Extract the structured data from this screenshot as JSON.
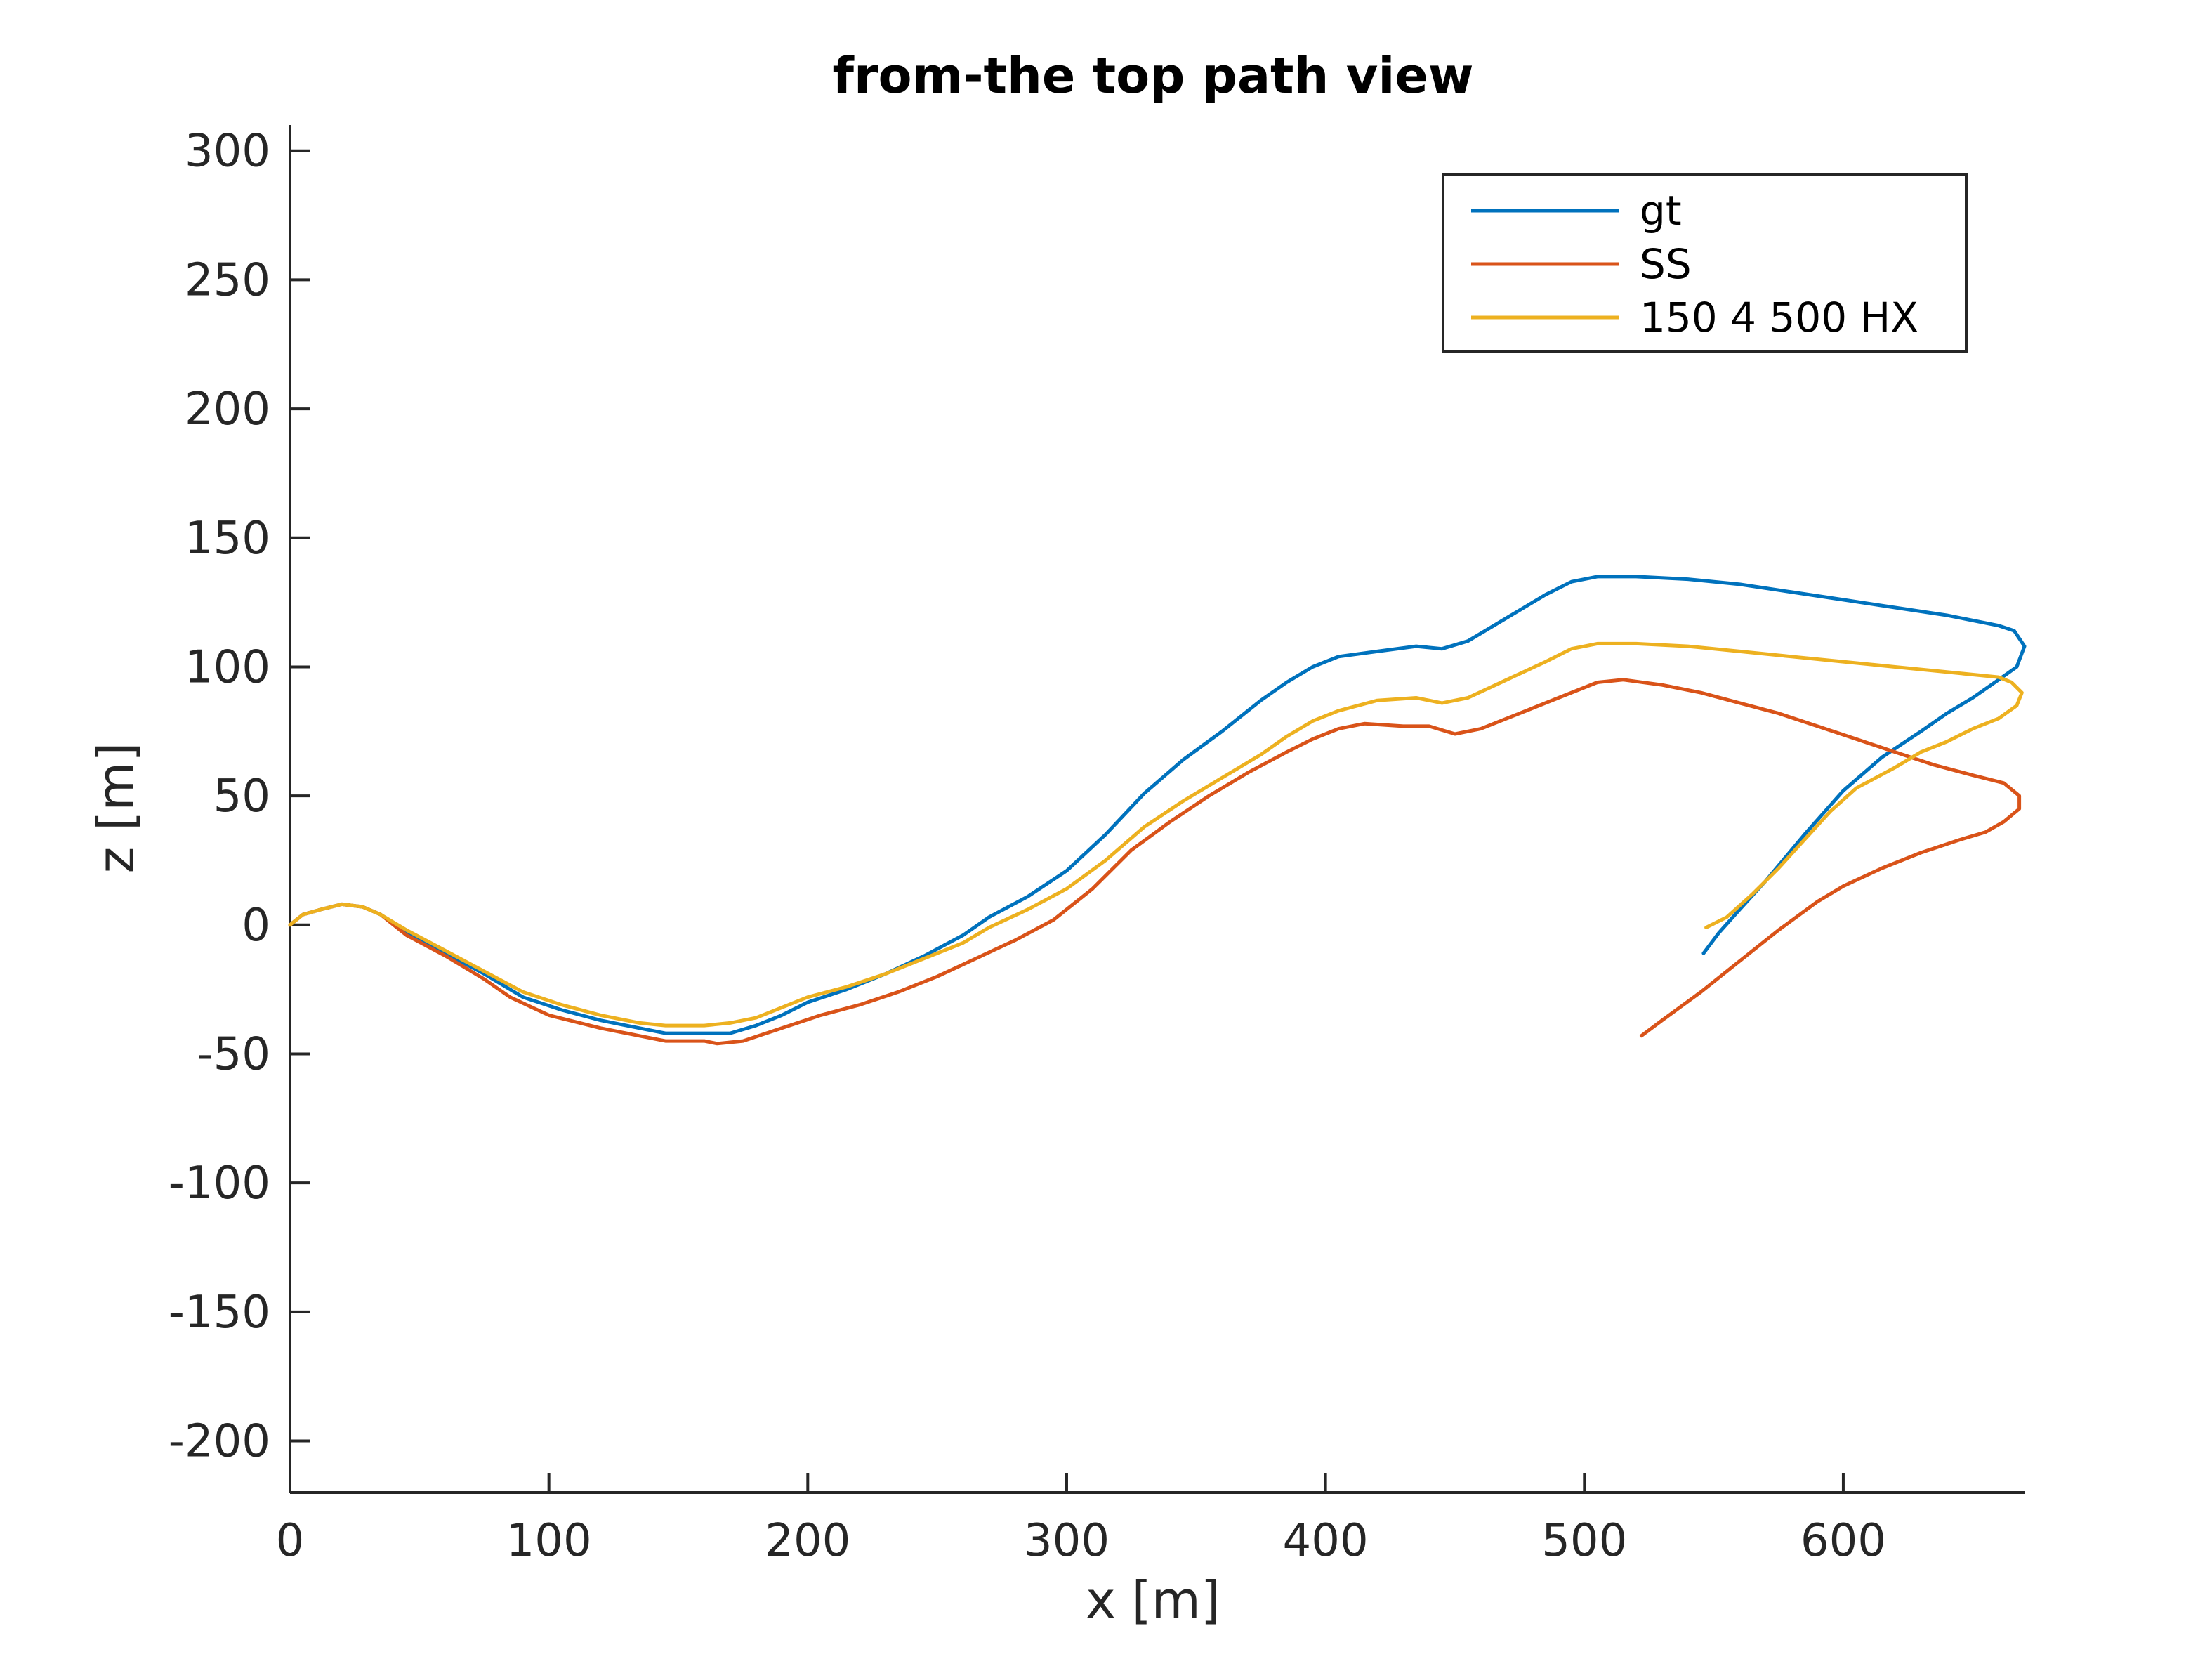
{
  "chart_data": {
    "type": "line",
    "title": "from-the top path view",
    "xlabel": "x [m]",
    "ylabel": "z [m]",
    "xlim": [
      0,
      670
    ],
    "ylim": [
      -220,
      310
    ],
    "xticks": [
      0,
      100,
      200,
      300,
      400,
      500,
      600
    ],
    "yticks": [
      300,
      250,
      200,
      150,
      100,
      50,
      0,
      -50,
      -100,
      -150,
      -200
    ],
    "grid": false,
    "legend_position": "top-right",
    "series": [
      {
        "name": "gt",
        "color": "#0072BD",
        "points": [
          [
            0,
            0
          ],
          [
            5,
            4
          ],
          [
            12,
            6
          ],
          [
            20,
            8
          ],
          [
            28,
            7
          ],
          [
            35,
            4
          ],
          [
            45,
            -3
          ],
          [
            60,
            -11
          ],
          [
            75,
            -19
          ],
          [
            90,
            -28
          ],
          [
            105,
            -33
          ],
          [
            120,
            -37
          ],
          [
            135,
            -40
          ],
          [
            145,
            -42
          ],
          [
            160,
            -42
          ],
          [
            170,
            -42
          ],
          [
            180,
            -39
          ],
          [
            190,
            -35
          ],
          [
            200,
            -30
          ],
          [
            215,
            -25
          ],
          [
            230,
            -19
          ],
          [
            245,
            -12
          ],
          [
            260,
            -4
          ],
          [
            270,
            3
          ],
          [
            285,
            11
          ],
          [
            300,
            21
          ],
          [
            315,
            35
          ],
          [
            330,
            51
          ],
          [
            345,
            64
          ],
          [
            360,
            75
          ],
          [
            375,
            87
          ],
          [
            385,
            94
          ],
          [
            395,
            100
          ],
          [
            405,
            104
          ],
          [
            420,
            106
          ],
          [
            435,
            108
          ],
          [
            445,
            107
          ],
          [
            455,
            110
          ],
          [
            470,
            119
          ],
          [
            485,
            128
          ],
          [
            495,
            133
          ],
          [
            505,
            135
          ],
          [
            520,
            135
          ],
          [
            540,
            134
          ],
          [
            560,
            132
          ],
          [
            580,
            129
          ],
          [
            600,
            126
          ],
          [
            620,
            123
          ],
          [
            640,
            120
          ],
          [
            660,
            116
          ],
          [
            666,
            114
          ],
          [
            670,
            108
          ],
          [
            667,
            100
          ],
          [
            660,
            95
          ],
          [
            650,
            88
          ],
          [
            640,
            82
          ],
          [
            630,
            75
          ],
          [
            615,
            65
          ],
          [
            600,
            52
          ],
          [
            585,
            35
          ],
          [
            570,
            17
          ],
          [
            560,
            6
          ],
          [
            552,
            -3
          ],
          [
            546,
            -11
          ]
        ]
      },
      {
        "name": "SS",
        "color": "#D95319",
        "points": [
          [
            0,
            0
          ],
          [
            5,
            4
          ],
          [
            12,
            6
          ],
          [
            20,
            8
          ],
          [
            28,
            7
          ],
          [
            35,
            4
          ],
          [
            45,
            -4
          ],
          [
            60,
            -12
          ],
          [
            75,
            -21
          ],
          [
            85,
            -28
          ],
          [
            100,
            -35
          ],
          [
            120,
            -40
          ],
          [
            135,
            -43
          ],
          [
            145,
            -45
          ],
          [
            160,
            -45
          ],
          [
            165,
            -46
          ],
          [
            175,
            -45
          ],
          [
            190,
            -40
          ],
          [
            205,
            -35
          ],
          [
            220,
            -31
          ],
          [
            235,
            -26
          ],
          [
            250,
            -20
          ],
          [
            265,
            -13
          ],
          [
            280,
            -6
          ],
          [
            295,
            2
          ],
          [
            310,
            14
          ],
          [
            325,
            29
          ],
          [
            340,
            40
          ],
          [
            355,
            50
          ],
          [
            370,
            59
          ],
          [
            385,
            67
          ],
          [
            395,
            72
          ],
          [
            405,
            76
          ],
          [
            415,
            78
          ],
          [
            430,
            77
          ],
          [
            440,
            77
          ],
          [
            450,
            74
          ],
          [
            460,
            76
          ],
          [
            475,
            82
          ],
          [
            490,
            88
          ],
          [
            505,
            94
          ],
          [
            515,
            95
          ],
          [
            530,
            93
          ],
          [
            545,
            90
          ],
          [
            560,
            86
          ],
          [
            575,
            82
          ],
          [
            590,
            77
          ],
          [
            605,
            72
          ],
          [
            620,
            67
          ],
          [
            635,
            62
          ],
          [
            650,
            58
          ],
          [
            662,
            55
          ],
          [
            668,
            50
          ],
          [
            668,
            45
          ],
          [
            662,
            40
          ],
          [
            655,
            36
          ],
          [
            645,
            33
          ],
          [
            630,
            28
          ],
          [
            615,
            22
          ],
          [
            600,
            15
          ],
          [
            590,
            9
          ],
          [
            575,
            -2
          ],
          [
            560,
            -14
          ],
          [
            545,
            -26
          ],
          [
            530,
            -37
          ],
          [
            522,
            -43
          ]
        ]
      },
      {
        "name": "150 4 500 HX",
        "color": "#EDB120",
        "points": [
          [
            0,
            0
          ],
          [
            5,
            4
          ],
          [
            12,
            6
          ],
          [
            20,
            8
          ],
          [
            28,
            7
          ],
          [
            35,
            4
          ],
          [
            45,
            -2
          ],
          [
            60,
            -10
          ],
          [
            75,
            -18
          ],
          [
            90,
            -26
          ],
          [
            105,
            -31
          ],
          [
            120,
            -35
          ],
          [
            135,
            -38
          ],
          [
            145,
            -39
          ],
          [
            160,
            -39
          ],
          [
            170,
            -38
          ],
          [
            180,
            -36
          ],
          [
            190,
            -32
          ],
          [
            200,
            -28
          ],
          [
            215,
            -24
          ],
          [
            230,
            -19
          ],
          [
            245,
            -13
          ],
          [
            260,
            -7
          ],
          [
            270,
            -1
          ],
          [
            285,
            6
          ],
          [
            300,
            14
          ],
          [
            315,
            25
          ],
          [
            330,
            38
          ],
          [
            345,
            48
          ],
          [
            360,
            57
          ],
          [
            375,
            66
          ],
          [
            385,
            73
          ],
          [
            395,
            79
          ],
          [
            405,
            83
          ],
          [
            420,
            87
          ],
          [
            435,
            88
          ],
          [
            445,
            86
          ],
          [
            455,
            88
          ],
          [
            470,
            95
          ],
          [
            485,
            102
          ],
          [
            495,
            107
          ],
          [
            505,
            109
          ],
          [
            520,
            109
          ],
          [
            540,
            108
          ],
          [
            560,
            106
          ],
          [
            580,
            104
          ],
          [
            600,
            102
          ],
          [
            620,
            100
          ],
          [
            640,
            98
          ],
          [
            660,
            96
          ],
          [
            665,
            94
          ],
          [
            669,
            90
          ],
          [
            667,
            85
          ],
          [
            660,
            80
          ],
          [
            650,
            76
          ],
          [
            640,
            71
          ],
          [
            630,
            67
          ],
          [
            620,
            61
          ],
          [
            605,
            53
          ],
          [
            595,
            44
          ],
          [
            585,
            33
          ],
          [
            575,
            22
          ],
          [
            565,
            12
          ],
          [
            555,
            3
          ],
          [
            547,
            -1
          ]
        ]
      }
    ]
  }
}
